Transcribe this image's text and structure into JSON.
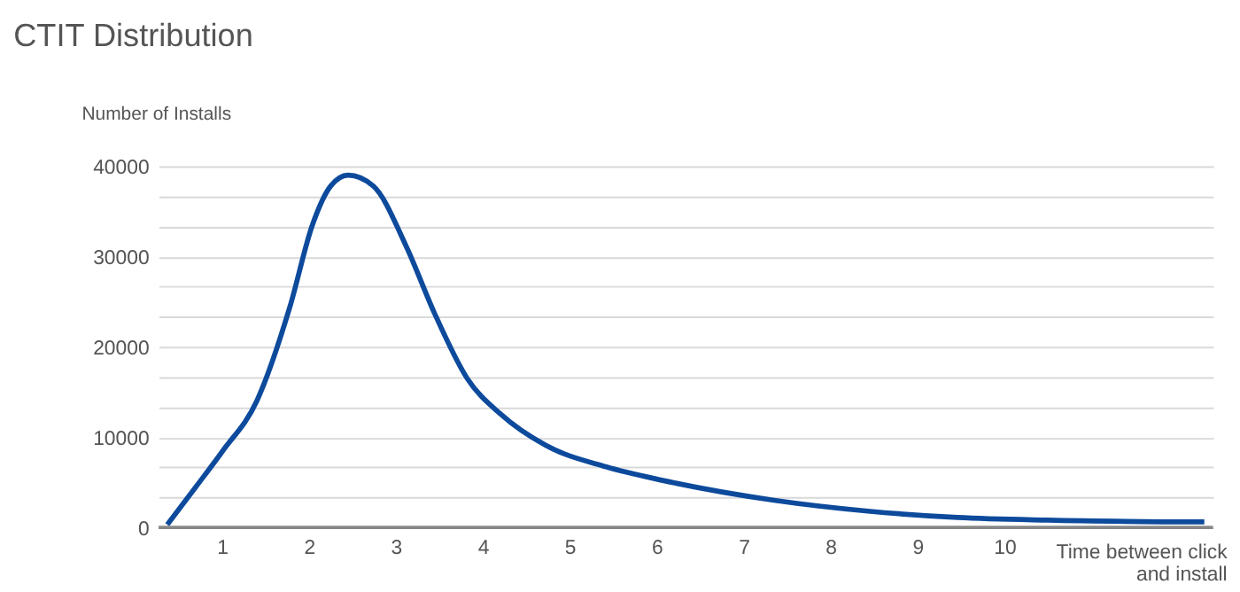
{
  "chart_data": {
    "type": "line",
    "title": "CTIT Distribution",
    "xlabel": "Time between click and install",
    "ylabel": "Number of Installs",
    "x": [
      0.37,
      0.7,
      1.01,
      1.4,
      1.78,
      2.04,
      2.25,
      2.45,
      2.74,
      3.12,
      3.44,
      3.82,
      4.21,
      4.72,
      5.42,
      6.07,
      7.35,
      8.43,
      9.46,
      10.5,
      12.3
    ],
    "series": [
      {
        "color": "#0d4a9c",
        "values": [
          300,
          4500,
          8500,
          14000,
          24400,
          33500,
          37800,
          39000,
          37800,
          31100,
          23800,
          16500,
          12500,
          9100,
          6700,
          5200,
          3000,
          1800,
          1100,
          800,
          600
        ]
      }
    ],
    "xlim": [
      0.27,
      12.4
    ],
    "xticks": [
      1,
      2,
      3,
      4,
      5,
      6,
      7,
      8,
      9,
      10
    ],
    "ylim": [
      0,
      40000
    ],
    "yticks": [
      0,
      {
        "value": 3333,
        "label": null
      },
      {
        "value": 6667,
        "label": null
      },
      10000,
      {
        "value": 13333,
        "label": null
      },
      {
        "value": 16667,
        "label": null
      },
      20000,
      {
        "value": 23333,
        "label": null
      },
      {
        "value": 26667,
        "label": null
      },
      30000,
      {
        "value": 33333,
        "label": null
      },
      {
        "value": 36667,
        "label": null
      },
      40000
    ],
    "grid": "y",
    "legend": false,
    "marker": "none",
    "line_style": "solid"
  }
}
